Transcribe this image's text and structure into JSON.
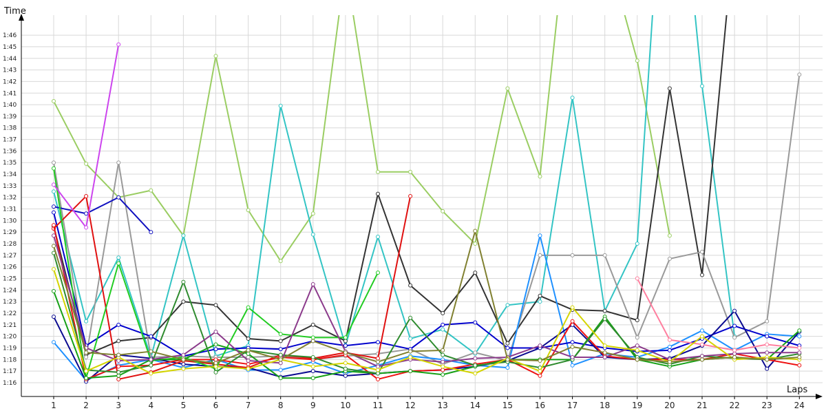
{
  "chart_data": {
    "type": "line",
    "xlabel": "Laps",
    "ylabel": "Time",
    "categories": [
      "1",
      "2",
      "3",
      "4",
      "5",
      "6",
      "7",
      "8",
      "9",
      "10",
      "11",
      "12",
      "13",
      "14",
      "15",
      "16",
      "17",
      "18",
      "19",
      "20",
      "21",
      "22",
      "23",
      "24"
    ],
    "y_ticks": [
      "1:16",
      "1:17",
      "1:18",
      "1:19",
      "1:20",
      "1:21",
      "1:22",
      "1:23",
      "1:24",
      "1:25",
      "1:26",
      "1:27",
      "1:28",
      "1:29",
      "1:30",
      "1:31",
      "1:32",
      "1:33",
      "1:34",
      "1:35",
      "1:36",
      "1:37",
      "1:38",
      "1:39",
      "1:40",
      "1:41",
      "1:42",
      "1:43",
      "1:44",
      "1:45",
      "1:46"
    ],
    "ylim_seconds": [
      75,
      108
    ],
    "grid": true,
    "series": [
      {
        "color": "#9acd62",
        "values": [
          100.3,
          94.9,
          92.0,
          92.6,
          88.7,
          104.2,
          90.9,
          86.5,
          90.6,
          112,
          94.2,
          94.2,
          90.8,
          88.0,
          101.4,
          93.8,
          120,
          114,
          103.8,
          88.7,
          null,
          null,
          null,
          null
        ]
      },
      {
        "color": "#33c4c4",
        "values": [
          92.5,
          81.3,
          86.8,
          78.2,
          88.7,
          78.3,
          79.2,
          99.9,
          88.8,
          79.2,
          88.6,
          79.8,
          80.6,
          78.5,
          82.7,
          83.0,
          100.6,
          82.2,
          88.0,
          130,
          101.6,
          80.0,
          null,
          null
        ]
      },
      {
        "color": "#333333",
        "values": [
          89.5,
          78.4,
          79.6,
          79.9,
          83.0,
          82.7,
          79.8,
          79.6,
          81.0,
          79.6,
          92.3,
          84.4,
          82.0,
          85.5,
          79.4,
          83.5,
          82.3,
          82.2,
          81.4,
          101.4,
          85.3,
          115,
          null,
          null
        ]
      },
      {
        "color": "#999999",
        "values": [
          95.0,
          78.2,
          95.0,
          78.2,
          78.3,
          78.2,
          78.2,
          78.3,
          78.0,
          78.3,
          78.5,
          78.9,
          77.6,
          78.6,
          77.9,
          87.0,
          87.0,
          87.0,
          79.9,
          86.7,
          87.3,
          79.9,
          81.3,
          102.6
        ]
      },
      {
        "color": "#1e90ff",
        "values": [
          79.5,
          76.2,
          77.5,
          78.0,
          77.3,
          78.0,
          77.1,
          77.1,
          77.8,
          76.8,
          77.5,
          78.3,
          78.0,
          77.5,
          77.3,
          88.7,
          77.5,
          78.5,
          78.2,
          79.1,
          80.5,
          78.8,
          80.2,
          80.0
        ]
      },
      {
        "color": "#1010c0",
        "values": [
          91.2,
          90.6,
          92.0,
          89.0,
          null,
          null,
          null,
          null,
          null,
          null,
          null,
          null,
          null,
          null,
          null,
          null,
          null,
          null,
          null,
          null,
          null,
          null,
          null,
          null
        ]
      },
      {
        "color": "#0000cc",
        "values": [
          90.7,
          79.2,
          81.0,
          80.0,
          78.3,
          78.9,
          79.0,
          78.9,
          79.6,
          79.2,
          79.5,
          78.9,
          81.0,
          81.2,
          79.0,
          79.0,
          79.5,
          79.0,
          78.7,
          78.8,
          79.8,
          80.9,
          80.0,
          79.2
        ]
      },
      {
        "color": "#0a0a90",
        "values": [
          81.7,
          76.1,
          78.4,
          78.1,
          77.6,
          77.4,
          77.3,
          76.5,
          77.0,
          76.6,
          76.8,
          77.0,
          77.1,
          77.4,
          77.9,
          79.0,
          81.0,
          78.2,
          78.0,
          78.1,
          79.2,
          82.2,
          77.2,
          80.4
        ]
      },
      {
        "color": "#e01010",
        "values": [
          89.3,
          92.1,
          76.3,
          76.9,
          77.9,
          77.6,
          77.3,
          78.4,
          78.1,
          78.6,
          78.1,
          92.1,
          null,
          null,
          null,
          null,
          null,
          null,
          null,
          null,
          null,
          null,
          null,
          null
        ]
      },
      {
        "color": "#ee1111",
        "values": [
          89.6,
          76.3,
          77.4,
          77.5,
          78.0,
          78.0,
          77.6,
          78.2,
          78.0,
          78.4,
          76.3,
          77.0,
          77.1,
          77.6,
          78.0,
          76.6,
          81.3,
          78.3,
          78.0,
          78.0,
          78.0,
          78.5,
          78.0,
          77.5
        ]
      },
      {
        "color": "#22cc22",
        "values": [
          94.5,
          76.4,
          86.3,
          77.9,
          78.2,
          77.2,
          82.5,
          80.2,
          79.9,
          79.9,
          85.5,
          null,
          null,
          null,
          null,
          null,
          null,
          null,
          null,
          null,
          null,
          null,
          null,
          null
        ]
      },
      {
        "color": "#15a015",
        "values": [
          83.9,
          76.4,
          76.6,
          78.0,
          78.0,
          79.3,
          78.5,
          76.4,
          76.4,
          77.0,
          76.8,
          77.0,
          76.7,
          77.4,
          78.0,
          78.0,
          78.0,
          81.7,
          78.0,
          77.4,
          78.0,
          78.2,
          78.0,
          80.5
        ]
      },
      {
        "color": "#2e8b2e",
        "values": [
          87.2,
          77.1,
          76.9,
          77.5,
          84.7,
          76.9,
          78.8,
          78.4,
          78.2,
          77.2,
          76.8,
          81.6,
          78.4,
          77.5,
          77.8,
          77.3,
          78.0,
          81.5,
          78.2,
          77.6,
          78.3,
          78.1,
          78.0,
          78.5
        ]
      },
      {
        "color": "#cc44ee",
        "values": [
          93.1,
          89.4,
          105.2,
          null,
          null,
          null,
          null,
          null,
          null,
          null,
          null,
          null,
          null,
          null,
          null,
          null,
          null,
          null,
          null,
          null,
          null,
          null,
          null,
          null
        ]
      },
      {
        "color": "#8b3a8b",
        "values": [
          88.7,
          79.0,
          77.9,
          78.0,
          78.4,
          80.4,
          77.9,
          77.7,
          84.5,
          78.7,
          77.4,
          78.0,
          77.8,
          78.1,
          78.2,
          79.2,
          78.2,
          78.2,
          79.2,
          78.0,
          78.3,
          78.5,
          78.6,
          78.6
        ]
      },
      {
        "color": "#ff7f9f",
        "values": [
          null,
          null,
          null,
          null,
          null,
          null,
          null,
          null,
          null,
          null,
          null,
          null,
          null,
          null,
          null,
          null,
          null,
          null,
          85.0,
          79.7,
          79.3,
          78.8,
          79.3,
          79.0
        ]
      },
      {
        "color": "#d4d400",
        "values": [
          85.8,
          77.0,
          78.2,
          76.8,
          77.2,
          77.4,
          77.2,
          78.0,
          77.4,
          77.7,
          77.1,
          78.2,
          77.4,
          76.8,
          78.1,
          77.0,
          82.5,
          79.2,
          78.8,
          77.8,
          80.0,
          78.0,
          78.2,
          78.0
        ]
      },
      {
        "color": "#808030",
        "values": [
          87.8,
          78.6,
          78.4,
          78.7,
          78.0,
          77.7,
          78.8,
          78.0,
          79.6,
          78.6,
          77.8,
          78.7,
          78.8,
          89.1,
          78.0,
          77.9,
          79.1,
          78.6,
          78.0,
          77.8,
          78.0,
          78.2,
          78.0,
          78.2
        ]
      }
    ]
  }
}
